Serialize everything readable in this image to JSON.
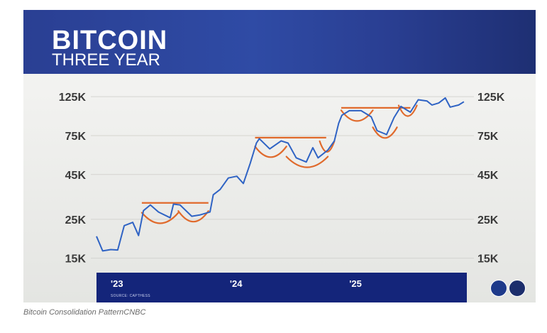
{
  "banner": {
    "title": "BITCOIN",
    "subtitle": "THREE YEAR"
  },
  "source": "SOURCE: CAPTHESS",
  "caption": "Bitcoin Consolidation PatternCNBC",
  "colors": {
    "banner": "#2f4ba5",
    "line": "#2f63c4",
    "pattern": "#e06a2c",
    "axis_band": "#14257a"
  },
  "chart_data": {
    "type": "line",
    "title": "BITCOIN THREE YEAR",
    "y_scale": "log",
    "ylim": [
      13000,
      140000
    ],
    "y_ticks": [
      15000,
      25000,
      45000,
      75000,
      125000
    ],
    "y_tick_labels_left": [
      "15K",
      "25K",
      "45K",
      "75K",
      "125K"
    ],
    "y_tick_labels_right": [
      "15K",
      "25K",
      "45K",
      "75K",
      "125K"
    ],
    "x_ticks": [
      {
        "label": "'23",
        "date": "2023-01-01"
      },
      {
        "label": "'24",
        "date": "2024-01-01"
      },
      {
        "label": "'25",
        "date": "2025-01-01"
      }
    ],
    "xlim": [
      "2022-11-01",
      "2025-12-10"
    ],
    "series": [
      {
        "points": [
          [
            "2022-11-01",
            20000
          ],
          [
            "2022-11-20",
            16500
          ],
          [
            "2022-12-15",
            16800
          ],
          [
            "2023-01-05",
            16700
          ],
          [
            "2023-01-25",
            23000
          ],
          [
            "2023-02-20",
            24000
          ],
          [
            "2023-03-10",
            20200
          ],
          [
            "2023-03-25",
            28000
          ],
          [
            "2023-04-15",
            30200
          ],
          [
            "2023-05-10",
            27500
          ],
          [
            "2023-06-15",
            25500
          ],
          [
            "2023-06-25",
            30500
          ],
          [
            "2023-07-15",
            30200
          ],
          [
            "2023-08-20",
            26000
          ],
          [
            "2023-09-15",
            26500
          ],
          [
            "2023-10-15",
            27500
          ],
          [
            "2023-10-25",
            34500
          ],
          [
            "2023-11-15",
            37000
          ],
          [
            "2023-12-10",
            43000
          ],
          [
            "2024-01-05",
            44000
          ],
          [
            "2024-01-25",
            40000
          ],
          [
            "2024-02-15",
            52000
          ],
          [
            "2024-03-05",
            68000
          ],
          [
            "2024-03-14",
            72000
          ],
          [
            "2024-04-15",
            63000
          ],
          [
            "2024-05-20",
            70000
          ],
          [
            "2024-06-10",
            68000
          ],
          [
            "2024-07-05",
            56000
          ],
          [
            "2024-08-05",
            53000
          ],
          [
            "2024-08-25",
            64000
          ],
          [
            "2024-09-10",
            56000
          ],
          [
            "2024-10-10",
            62000
          ],
          [
            "2024-10-30",
            70000
          ],
          [
            "2024-11-12",
            88000
          ],
          [
            "2024-11-22",
            98000
          ],
          [
            "2024-12-15",
            104000
          ],
          [
            "2025-01-20",
            104000
          ],
          [
            "2025-02-20",
            96000
          ],
          [
            "2025-03-10",
            80000
          ],
          [
            "2025-04-08",
            76000
          ],
          [
            "2025-05-01",
            95000
          ],
          [
            "2025-05-22",
            110000
          ],
          [
            "2025-06-20",
            102000
          ],
          [
            "2025-07-14",
            120000
          ],
          [
            "2025-08-10",
            118000
          ],
          [
            "2025-08-25",
            112000
          ],
          [
            "2025-09-15",
            115000
          ],
          [
            "2025-10-05",
            123000
          ],
          [
            "2025-10-20",
            109000
          ],
          [
            "2025-11-15",
            112000
          ],
          [
            "2025-12-01",
            117000
          ]
        ]
      }
    ],
    "annotations": {
      "resistance_lines": [
        {
          "start": "2023-03-20",
          "end": "2023-10-10",
          "level": 31000
        },
        {
          "start": "2024-03-01",
          "end": "2024-10-05",
          "level": 73000
        },
        {
          "start": "2024-11-20",
          "end": "2025-06-20",
          "level": 108000
        }
      ],
      "cup_arcs": [
        {
          "start": "2023-03-20",
          "end": "2023-07-10",
          "low": 23500
        },
        {
          "start": "2023-07-10",
          "end": "2023-10-10",
          "low": 24000
        },
        {
          "start": "2024-03-01",
          "end": "2024-06-05",
          "low": 56000
        },
        {
          "start": "2024-06-05",
          "end": "2024-10-10",
          "low": 49000
        },
        {
          "start": "2024-09-15",
          "end": "2024-10-30",
          "low": 60000
        },
        {
          "start": "2024-11-20",
          "end": "2025-02-25",
          "low": 90000
        },
        {
          "start": "2025-02-25",
          "end": "2025-05-10",
          "low": 72000
        },
        {
          "start": "2025-05-15",
          "end": "2025-07-10",
          "low": 96000
        }
      ]
    }
  }
}
